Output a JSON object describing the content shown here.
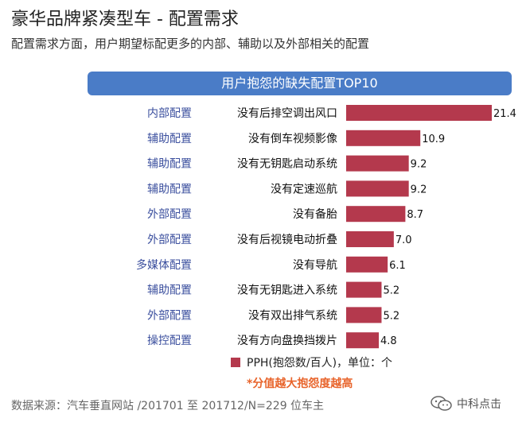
{
  "page": {
    "title": "豪华品牌紧凑型车 - 配置需求",
    "subtitle": "配置需求方面，用户期望标配更多的内部、辅助以及外部相关的配置",
    "source": "数据来源：汽车垂直网站 /201701 至 201712/N=229 位车主",
    "watermark": "中科点击"
  },
  "colors": {
    "bar": "#b4394d",
    "banner": "#4a7cc7",
    "category_label": "#3b4f9e",
    "note": "#e8642b"
  },
  "chart_data": {
    "type": "bar",
    "orientation": "horizontal",
    "title": "用户抱怨的缺失配置TOP10",
    "categories": [
      "没有后排空调出风口",
      "没有倒车视频影像",
      "没有无钥匙启动系统",
      "没有定速巡航",
      "没有备胎",
      "没有后视镜电动折叠",
      "没有导航",
      "没有无钥匙进入系统",
      "没有双出排气系统",
      "没有方向盘换挡拨片"
    ],
    "groups": [
      "内部配置",
      "辅助配置",
      "辅助配置",
      "辅助配置",
      "外部配置",
      "外部配置",
      "多媒体配置",
      "辅助配置",
      "外部配置",
      "操控配置"
    ],
    "series": [
      {
        "name": "PPH(抱怨数/百人)，单位：个",
        "values": [
          21.4,
          10.9,
          9.2,
          9.2,
          8.7,
          7.0,
          6.1,
          5.2,
          5.2,
          4.8
        ]
      }
    ],
    "value_labels": [
      "21.4",
      "10.9",
      "9.2",
      "9.2",
      "8.7",
      "7.0",
      "6.1",
      "5.2",
      "5.2",
      "4.8"
    ],
    "xlim": [
      0,
      21.4
    ],
    "legend": "bottom",
    "note": "*分值越大抱怨度越高"
  }
}
